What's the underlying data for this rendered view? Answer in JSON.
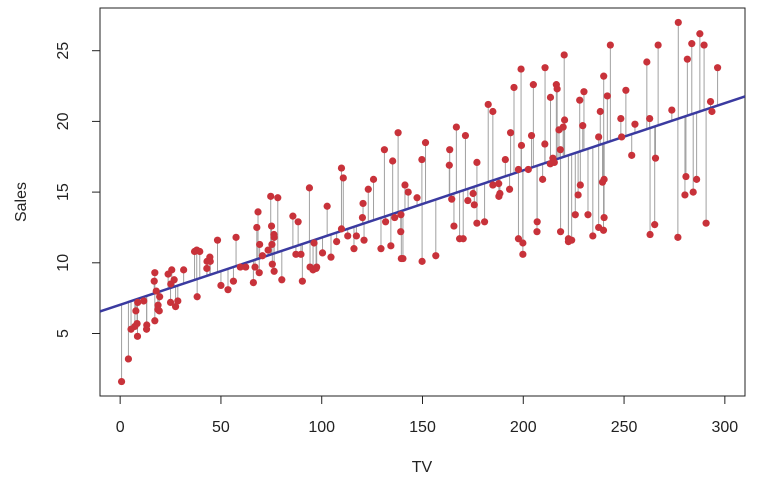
{
  "chart_data": {
    "type": "scatter",
    "x_label": "TV",
    "y_label": "Sales",
    "xlim": [
      -10,
      310
    ],
    "ylim": [
      0.58,
      28.02
    ],
    "xticks": [
      0,
      50,
      100,
      150,
      200,
      250,
      300
    ],
    "yticks": [
      5,
      10,
      15,
      20,
      25
    ],
    "color": "#c8323a",
    "line_color": "#3a3aa0",
    "residual_color": "#a0a0a0",
    "fit": {
      "intercept": 7.0326,
      "slope": 0.04754
    },
    "x": [
      230.1,
      44.5,
      17.2,
      151.5,
      180.8,
      8.7,
      57.5,
      120.2,
      8.6,
      199.8,
      66.1,
      214.7,
      23.8,
      97.5,
      204.1,
      195.4,
      67.8,
      281.4,
      69.2,
      147.3,
      218.4,
      237.4,
      13.2,
      228.3,
      62.3,
      262.9,
      142.9,
      240.1,
      248.8,
      70.6,
      292.9,
      112.9,
      97.2,
      265.6,
      95.7,
      290.7,
      266.9,
      74.7,
      43.1,
      228,
      202.5,
      177,
      293.6,
      206.9,
      25.1,
      175.1,
      89.7,
      239.9,
      227.2,
      66.9,
      199.8,
      100.4,
      216.4,
      182.6,
      262.7,
      198.9,
      7.3,
      136.2,
      210.8,
      210.7,
      53.5,
      261.3,
      239.3,
      102.7,
      131.1,
      69,
      31.5,
      139.3,
      237.4,
      216.8,
      199.1,
      109.8,
      26.8,
      129.4,
      213.4,
      16.9,
      27.5,
      120.5,
      5.4,
      116,
      76.4,
      239.8,
      75.3,
      68.4,
      213.5,
      193.2,
      76.3,
      110.7,
      88.3,
      109.8,
      134.3,
      28.6,
      217.7,
      250.9,
      107.4,
      163.3,
      197.6,
      184.9,
      289.7,
      135.2,
      222.4,
      296.4,
      280.2,
      187.9,
      238.2,
      137.9,
      25,
      90.4,
      13.1,
      255.4,
      225.8,
      241.7,
      175.7,
      209.6,
      78.2,
      75.1,
      139.2,
      76.4,
      125.7,
      19.4,
      141.3,
      18.8,
      224,
      123.1,
      229.5,
      87.2,
      7.8,
      80.2,
      220.3,
      59.6,
      0.7,
      265.2,
      8.4,
      219.8,
      36.9,
      48.3,
      25.6,
      273.7,
      43,
      184.9,
      73.4,
      193.7,
      220.5,
      104.6,
      96.2,
      140.3,
      240.1,
      243.2,
      38,
      44.7,
      280.7,
      121,
      197.6,
      171.3,
      187.8,
      4.1,
      93.9,
      149.8,
      11.7,
      131.7,
      172.5,
      85.7,
      188.4,
      163.5,
      117.2,
      234.5,
      17.9,
      206.8,
      215.4,
      284.3,
      50,
      164.5,
      19.6,
      168.4,
      222.4,
      276.9,
      248.4,
      170.2,
      276.7,
      165.6,
      156.6,
      218.5,
      56.2,
      287.6,
      253.8,
      205,
      139.5,
      191.1,
      286,
      18.7,
      39.5,
      75.5,
      17.2,
      166.8,
      149.7,
      38.2,
      94.2,
      177,
      283.6,
      232.1
    ],
    "values": [
      22.1,
      10.4,
      9.3,
      18.5,
      12.9,
      7.2,
      11.8,
      13.2,
      4.8,
      10.6,
      8.6,
      17.4,
      9.2,
      9.7,
      19,
      22.4,
      12.5,
      24.4,
      11.3,
      14.6,
      18,
      12.5,
      5.6,
      15.5,
      9.7,
      12,
      15,
      15.9,
      18.9,
      10.5,
      21.4,
      11.9,
      9.6,
      17.4,
      9.5,
      12.8,
      25.4,
      14.7,
      10.1,
      21.5,
      16.6,
      17.1,
      20.7,
      12.9,
      8.5,
      14.9,
      10.6,
      23.2,
      14.8,
      9.7,
      11.4,
      10.7,
      22.6,
      21.2,
      20.2,
      23.7,
      5.5,
      13.2,
      23.8,
      18.4,
      8.1,
      24.2,
      15.7,
      14,
      18,
      9.3,
      9.5,
      13.4,
      18.9,
      22.3,
      18.3,
      12.4,
      8.8,
      11,
      17,
      8.7,
      6.9,
      14.2,
      5.3,
      11,
      11.8,
      12.3,
      11.3,
      13.6,
      21.7,
      15.2,
      12,
      16,
      12.9,
      16.7,
      11.2,
      7.3,
      19.4,
      22.2,
      11.5,
      16.9,
      11.7,
      15.5,
      25.4,
      17.2,
      11.7,
      23.8,
      14.8,
      14.7,
      20.7,
      19.2,
      7.2,
      8.7,
      5.3,
      19.8,
      13.4,
      21.8,
      14.1,
      15.9,
      14.6,
      12.6,
      12.2,
      9.4,
      15.9,
      6.6,
      15.5,
      7,
      11.6,
      15.2,
      19.7,
      10.6,
      6.6,
      8.8,
      24.7,
      9.7,
      1.6,
      12.7,
      5.7,
      19.6,
      10.8,
      11.6,
      9.5,
      20.8,
      9.6,
      20.7,
      10.9,
      19.2,
      20.1,
      10.4,
      11.4,
      10.3,
      13.2,
      25.4,
      10.9,
      10.1,
      16.1,
      11.6,
      16.6,
      19,
      15.6,
      3.2,
      15.3,
      10.1,
      7.3,
      12.9,
      14.4,
      13.3,
      14.9,
      18,
      11.9,
      11.9,
      8,
      12.2,
      17.1,
      15,
      8.4,
      14.5,
      7.6,
      11.7,
      11.5,
      27,
      20.2,
      11.7,
      11.8,
      12.6,
      10.5,
      12.2,
      8.7,
      26.2,
      17.6,
      22.6,
      10.3,
      17.3,
      15.9,
      6.7,
      10.8,
      9.9,
      5.9,
      19.6,
      17.3,
      7.6,
      9.7,
      12.8,
      25.5,
      13.4
    ]
  }
}
